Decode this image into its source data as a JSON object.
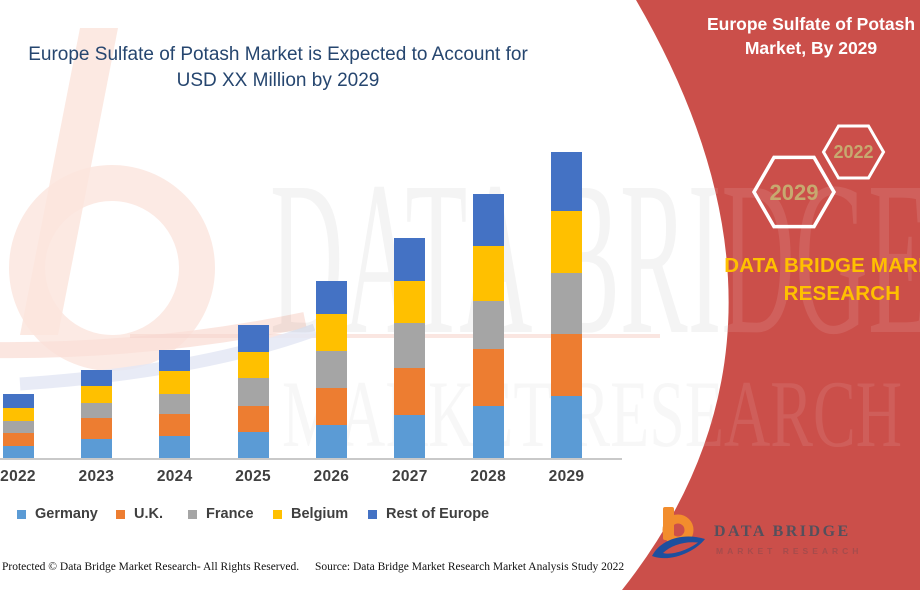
{
  "header": {
    "main_title_lines": [
      "Europe Sulfate of Potash Market is Expected to Account for",
      "USD XX Million by 2029"
    ],
    "panel_title_lines": [
      "Europe Sulfate of Potash",
      "Market, By 2029"
    ]
  },
  "hexagons": {
    "front_year": "2029",
    "back_year": "2022"
  },
  "brand": {
    "wordmark_line1": "DATA BRIDGE MARKET",
    "wordmark_line2": "RESEARCH",
    "logo_name": "DATA BRIDGE",
    "logo_sub": "MARKET RESEARCH"
  },
  "watermark": {
    "line1": "DATA BRIDGE",
    "line2": "MARKET RESEARCH"
  },
  "footer": {
    "copyright": "Protected © Data Bridge Market Research- All Rights Reserved.",
    "source": "Source: Data Bridge Market Research Market Analysis Study 2022"
  },
  "colors": {
    "red_panel": "#CB4F4A",
    "title_navy": "#26466F",
    "accent_yellow": "#FFC000",
    "hexagon_text_gold": "#C7A96F",
    "axis_gray": "#C9C9C9",
    "label_gray": "#404040"
  },
  "chart_data": {
    "type": "bar",
    "stacked": true,
    "title": "Europe Sulfate of Potash Market is Expected to Account for USD XX Million by 2029",
    "xlabel": "",
    "ylabel": "",
    "units": "relative units (actual values masked as 'USD XX Million')",
    "y_axis_visible": false,
    "gridlines": false,
    "legend_position": "bottom",
    "ylim": [
      0,
      320
    ],
    "categories": [
      "2022",
      "2023",
      "2024",
      "2025",
      "2026",
      "2027",
      "2028",
      "2029"
    ],
    "series": [
      {
        "name": "Germany",
        "color": "#5B9BD5",
        "values": [
          12,
          19,
          22,
          26,
          33,
          43,
          52,
          62
        ]
      },
      {
        "name": "U.K.",
        "color": "#ED7D31",
        "values": [
          13,
          21,
          22,
          26,
          37,
          47,
          57,
          62
        ]
      },
      {
        "name": "France",
        "color": "#A5A5A5",
        "values": [
          12,
          15,
          20,
          28,
          37,
          45,
          48,
          61
        ]
      },
      {
        "name": "Belgium",
        "color": "#FFC000",
        "values": [
          13,
          17,
          23,
          26,
          37,
          42,
          55,
          62
        ]
      },
      {
        "name": "Rest of Europe",
        "color": "#4472C4",
        "values": [
          14,
          16,
          21,
          27,
          33,
          43,
          52,
          59
        ]
      }
    ],
    "totals_estimated": [
      64,
      88,
      108,
      133,
      177,
      220,
      264,
      306
    ]
  }
}
